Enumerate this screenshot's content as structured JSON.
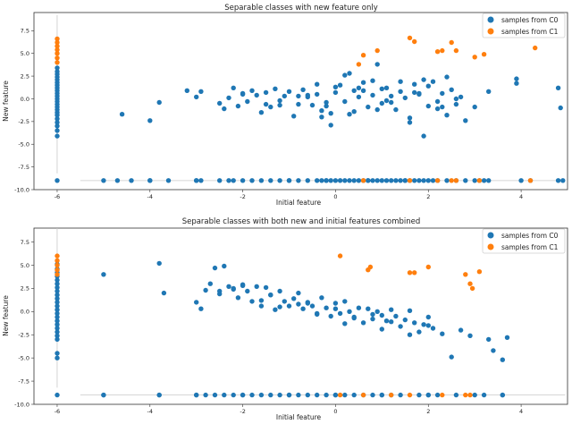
{
  "chart_data": [
    {
      "type": "scatter",
      "title": "Separable classes with new feature only",
      "xlabel": "Initial feature",
      "ylabel": "New feature",
      "xlim": [
        -6.5,
        5.0
      ],
      "ylim": [
        -10.0,
        9.5
      ],
      "xticks": [
        "-6",
        "-4",
        "-2",
        "0",
        "2",
        "4"
      ],
      "xtick_values": [
        -6,
        -4,
        -2,
        0,
        2,
        4
      ],
      "yticks": [
        "7.5",
        "5.0",
        "2.5",
        "0.0",
        "-2.5",
        "-5.0",
        "-7.5",
        "-10.0"
      ],
      "ytick_values": [
        7.5,
        5.0,
        2.5,
        0.0,
        -2.5,
        -5.0,
        -7.5,
        -10.0
      ],
      "grid": false,
      "legend": "top-right",
      "guides": {
        "vertical_x": -6.0,
        "vertical_y": [
          -8.2,
          9.2
        ],
        "horizontal_y": -9.0,
        "horizontal_x": [
          -5.5,
          4.95
        ]
      },
      "series": [
        {
          "name": "samples from C0",
          "color": "#1f77b4",
          "x": [
            -4.6,
            -4.0,
            -3.8,
            -3.2,
            -3.0,
            -2.9,
            -2.5,
            -2.4,
            -2.3,
            -2.2,
            -2.1,
            -2.0,
            -1.9,
            -1.8,
            -1.7,
            -1.6,
            -1.5,
            -1.4,
            -1.3,
            -1.2,
            -1.1,
            -1.0,
            -0.9,
            -0.8,
            -0.7,
            -0.6,
            -0.5,
            -0.4,
            -0.3,
            -0.2,
            -0.1,
            0.0,
            0.1,
            0.2,
            0.3,
            0.4,
            0.5,
            0.6,
            0.7,
            0.8,
            0.9,
            1.0,
            1.1,
            1.2,
            1.3,
            1.4,
            1.5,
            1.6,
            1.7,
            1.8,
            1.9,
            2.0,
            2.1,
            2.2,
            2.3,
            2.4,
            2.5,
            2.6,
            2.7,
            2.8,
            3.0,
            3.3,
            3.9,
            3.9,
            4.8,
            4.85,
            -0.6,
            -0.4,
            -0.3,
            -0.2,
            0.0,
            0.2,
            0.4,
            0.6,
            0.8,
            1.0,
            1.2,
            1.4,
            1.6,
            1.8,
            2.0,
            2.2,
            2.4,
            2.6,
            -1.2,
            -0.8,
            -0.1,
            0.5,
            1.1,
            1.7,
            2.3,
            0.3,
            0.9,
            -2.0,
            -1.5,
            1.9,
            -4.0,
            -3.0,
            -2.2,
            -1.0,
            -0.2,
            0.7,
            1.5,
            3.1,
            4.9
          ],
          "y": [
            -1.7,
            -2.4,
            -0.4,
            0.9,
            0.2,
            0.8,
            -0.5,
            -1.1,
            0.1,
            1.2,
            -0.8,
            0.6,
            -0.3,
            0.9,
            0.4,
            -1.5,
            0.7,
            -0.9,
            1.1,
            -0.2,
            0.3,
            0.8,
            -1.9,
            -0.6,
            1.0,
            0.2,
            -0.7,
            0.5,
            -1.3,
            -0.4,
            -2.9,
            0.7,
            1.5,
            -0.3,
            -1.7,
            0.9,
            0.2,
            1.8,
            -0.9,
            0.4,
            3.8,
            -0.5,
            1.2,
            0.3,
            -1.2,
            0.8,
            0.1,
            -2.1,
            1.6,
            0.5,
            -4.1,
            -0.8,
            1.9,
            -0.3,
            0.6,
            -1.8,
            1.0,
            -0.6,
            0.2,
            -2.4,
            -0.9,
            0.8,
            2.2,
            1.7,
            1.2,
            -1.0,
            0.4,
            1.6,
            -2.0,
            -0.8,
            1.3,
            2.6,
            -1.4,
            0.9,
            2.0,
            1.1,
            -0.4,
            1.9,
            -2.6,
            0.6,
            1.4,
            -1.1,
            2.4,
            0.0,
            -0.7,
            0.3,
            -1.6,
            1.2,
            -0.2,
            0.7,
            -0.9,
            2.8,
            -1.2,
            0.5,
            -0.6,
            2.1,
            -9.0,
            -9.0,
            -9.0,
            -9.0,
            -9.0,
            -9.0,
            -9.0,
            -9.0,
            -9.0
          ],
          "strip_x": -6.0,
          "strip_y": [
            -4.1,
            -3.5,
            -3.0,
            -2.6,
            -2.2,
            -1.8,
            -1.5,
            -1.2,
            -0.9,
            -0.6,
            -0.3,
            0.0,
            0.3,
            0.6,
            0.9,
            1.2,
            1.5,
            1.8,
            2.1,
            2.4,
            2.7,
            3.0,
            3.4
          ],
          "row_y": -9.0,
          "row_x": [
            -6.0,
            -5.0,
            -4.7,
            -4.4,
            -4.0,
            -3.6,
            -3.0,
            -2.9,
            -2.5,
            -2.3,
            -2.0,
            -1.8,
            -1.6,
            -1.4,
            -1.2,
            -1.0,
            -0.8,
            -0.6,
            -0.4,
            -0.3,
            -0.2,
            -0.1,
            0.0,
            0.1,
            0.2,
            0.3,
            0.4,
            0.5,
            0.6,
            0.7,
            0.8,
            0.9,
            1.0,
            1.1,
            1.2,
            1.3,
            1.4,
            1.5,
            1.6,
            1.7,
            1.8,
            1.9,
            2.0,
            2.1,
            2.2,
            2.4,
            2.6,
            2.8,
            3.0,
            3.2,
            3.3,
            4.0,
            4.2,
            4.8
          ]
        },
        {
          "name": "samples from C1",
          "color": "#ff7f0e",
          "x": [
            0.6,
            0.9,
            1.6,
            1.7,
            2.2,
            2.3,
            2.5,
            2.6,
            3.0,
            3.2,
            4.3,
            0.5
          ],
          "y": [
            4.8,
            5.3,
            6.7,
            6.3,
            5.2,
            5.3,
            6.2,
            5.3,
            4.6,
            4.9,
            5.6,
            3.8
          ],
          "strip_x": -6.0,
          "strip_y": [
            4.0,
            4.5,
            5.0,
            5.4,
            5.8,
            6.2,
            6.6
          ],
          "row_y": -9.0,
          "row_x": [
            0.6,
            1.6,
            2.2,
            2.5,
            2.6,
            3.1,
            4.2
          ]
        }
      ]
    },
    {
      "type": "scatter",
      "title": "Separable classes with both new and initial features combined",
      "xlabel": "Initial feature",
      "ylabel": "New feature",
      "xlim": [
        -6.5,
        5.0
      ],
      "ylim": [
        -10.0,
        9.0
      ],
      "xticks": [
        "-6",
        "-4",
        "-2",
        "0",
        "2",
        "4"
      ],
      "xtick_values": [
        -6,
        -4,
        -2,
        0,
        2,
        4
      ],
      "yticks": [
        "7.5",
        "5.0",
        "2.5",
        "0.0",
        "-2.5",
        "-5.0",
        "-7.5",
        "-10.0"
      ],
      "ytick_values": [
        7.5,
        5.0,
        2.5,
        0.0,
        -2.5,
        -5.0,
        -7.5,
        -10.0
      ],
      "grid": false,
      "legend": "top-right",
      "guides": {
        "vertical_x": -6.0,
        "vertical_y": [
          -8.2,
          9.0
        ],
        "horizontal_y": -9.0,
        "horizontal_x": [
          -5.5,
          4.95
        ]
      },
      "series": [
        {
          "name": "samples from C0",
          "color": "#1f77b4",
          "x": [
            -5.0,
            -3.8,
            -3.7,
            -3.0,
            -2.9,
            -2.8,
            -2.7,
            -2.6,
            -2.5,
            -2.4,
            -2.3,
            -2.2,
            -2.1,
            -2.0,
            -1.9,
            -1.8,
            -1.7,
            -1.6,
            -1.5,
            -1.4,
            -1.3,
            -1.2,
            -1.1,
            -1.0,
            -0.9,
            -0.8,
            -0.7,
            -0.6,
            -0.5,
            -0.4,
            -0.3,
            -0.2,
            -0.1,
            0.0,
            0.1,
            0.2,
            0.3,
            0.4,
            0.5,
            0.6,
            0.7,
            0.8,
            0.9,
            1.0,
            1.1,
            1.2,
            1.3,
            1.4,
            1.5,
            1.6,
            1.7,
            1.8,
            1.9,
            2.0,
            2.1,
            2.3,
            2.5,
            2.7,
            2.9,
            3.3,
            3.4,
            3.6,
            3.7,
            -2.5,
            -2.0,
            -1.6,
            -1.2,
            -0.8,
            -0.4,
            0.0,
            0.4,
            0.8,
            1.2,
            1.6,
            2.0,
            -2.2,
            -1.4,
            -0.6,
            0.2,
            1.0,
            -5.0,
            -3.8,
            -3.0,
            -2.0,
            -1.0,
            0.0,
            1.0,
            2.0,
            3.0,
            3.6
          ],
          "y": [
            4.0,
            5.2,
            2.0,
            1.0,
            0.3,
            2.3,
            3.0,
            4.7,
            2.2,
            4.9,
            2.7,
            2.4,
            1.5,
            2.9,
            2.2,
            1.1,
            2.7,
            0.6,
            2.6,
            1.8,
            0.2,
            2.2,
            1.1,
            0.6,
            1.4,
            2.0,
            0.3,
            1.0,
            0.6,
            -0.3,
            1.5,
            0.4,
            -0.5,
            0.9,
            -0.2,
            1.1,
            0.0,
            -0.6,
            0.4,
            -1.2,
            0.3,
            -0.8,
            0.0,
            -0.4,
            -1.0,
            0.2,
            -0.5,
            -1.6,
            -0.9,
            0.1,
            -1.2,
            -2.2,
            -1.4,
            -0.6,
            -1.8,
            -2.4,
            -4.9,
            -2.0,
            -2.6,
            -3.0,
            -4.2,
            -5.2,
            -2.8,
            1.9,
            2.8,
            1.2,
            0.5,
            0.8,
            -0.2,
            0.3,
            -0.7,
            -0.3,
            -1.1,
            -2.5,
            -1.5,
            2.5,
            1.8,
            0.9,
            -1.3,
            -1.9,
            -9.0,
            -9.0,
            -9.0,
            -9.0,
            -9.0,
            -9.0,
            -9.0,
            -9.0,
            -9.0,
            -9.0
          ],
          "strip_x": -6.0,
          "strip_y": [
            -5.0,
            -4.5,
            -3.0,
            -2.6,
            -2.2,
            -1.8,
            -1.4,
            -1.0,
            -0.6,
            -0.2,
            0.2,
            0.6,
            1.0,
            1.4,
            1.8,
            2.2,
            2.6,
            3.0,
            3.4,
            3.8,
            4.2,
            4.6,
            5.1
          ],
          "row_y": -9.0,
          "row_x": [
            -6.0,
            -5.0,
            -3.8,
            -3.0,
            -2.8,
            -2.6,
            -2.4,
            -2.2,
            -2.0,
            -1.8,
            -1.6,
            -1.4,
            -1.2,
            -1.0,
            -0.8,
            -0.6,
            -0.4,
            -0.2,
            0.0,
            0.2,
            0.4,
            0.6,
            0.8,
            1.0,
            1.2,
            1.4,
            1.8,
            2.0,
            2.2,
            2.6,
            3.2,
            3.6
          ]
        },
        {
          "name": "samples from C1",
          "color": "#ff7f0e",
          "x": [
            0.1,
            0.7,
            0.75,
            1.6,
            1.7,
            2.0,
            2.8,
            2.9,
            2.95,
            3.1
          ],
          "y": [
            6.0,
            4.5,
            4.8,
            4.2,
            4.2,
            4.8,
            4.0,
            3.0,
            2.5,
            4.3
          ],
          "strip_x": -6.0,
          "strip_y": [
            4.0,
            4.5,
            5.0,
            5.5,
            6.0
          ],
          "row_y": -9.0,
          "row_x": [
            0.1,
            0.6,
            1.2,
            1.6,
            2.3,
            2.8,
            2.9
          ]
        }
      ]
    }
  ]
}
